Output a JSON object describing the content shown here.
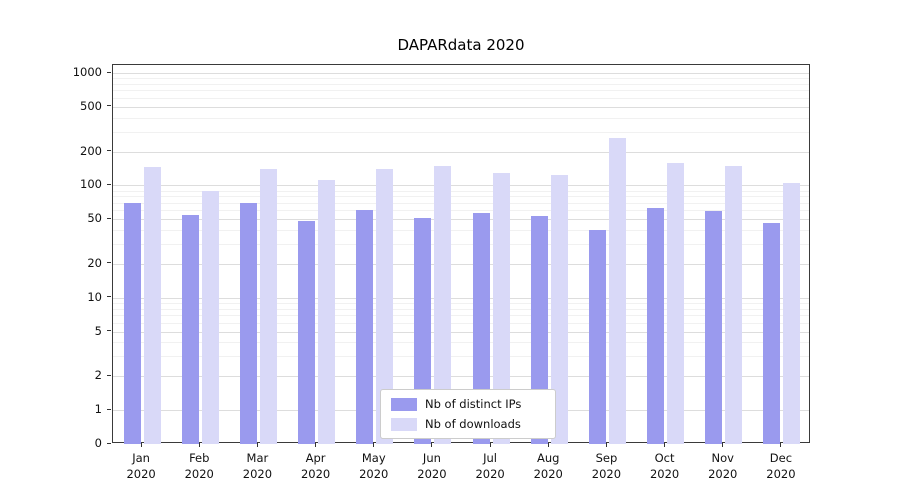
{
  "chart_data": {
    "type": "bar",
    "title": "DAPARdata 2020",
    "scale": "symlog-y",
    "grid": true,
    "legend_position": "lower center",
    "categories": [
      "Jan",
      "Feb",
      "Mar",
      "Apr",
      "May",
      "Jun",
      "Jul",
      "Aug",
      "Sep",
      "Oct",
      "Nov",
      "Dec"
    ],
    "x_year": "2020",
    "yticks": [
      0,
      1,
      2,
      5,
      10,
      20,
      50,
      100,
      200,
      500,
      1000
    ],
    "ylim": [
      0,
      1000
    ],
    "series": [
      {
        "name": "Nb of distinct IPs",
        "color": "#9a9aee",
        "values": [
          70,
          55,
          70,
          48,
          60,
          51,
          57,
          53,
          40,
          63,
          59,
          46
        ]
      },
      {
        "name": "Nb of downloads",
        "color": "#d9d9f8",
        "values": [
          145,
          90,
          140,
          112,
          140,
          148,
          130,
          123,
          265,
          158,
          148,
          105
        ]
      }
    ]
  }
}
